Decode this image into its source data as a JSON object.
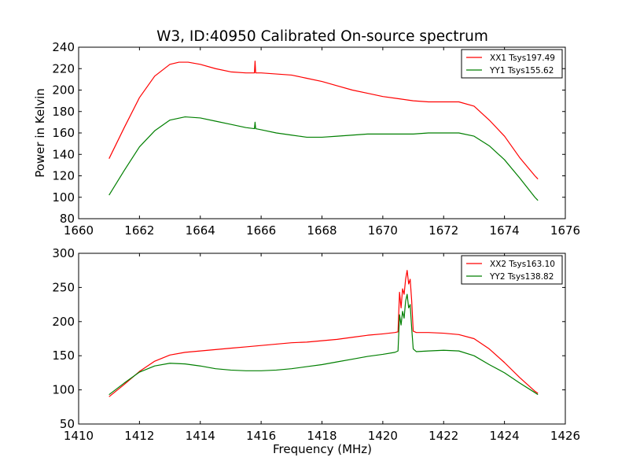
{
  "chart_data": [
    {
      "type": "line",
      "title": "W3, ID:40950 Calibrated On-source spectrum",
      "xlabel": "",
      "ylabel": "Power in Kelvin",
      "xlim": [
        1660,
        1676
      ],
      "ylim": [
        80,
        240
      ],
      "xticks": [
        "1660",
        "1662",
        "1664",
        "1666",
        "1668",
        "1670",
        "1672",
        "1674",
        "1676"
      ],
      "yticks": [
        "80",
        "100",
        "120",
        "140",
        "160",
        "180",
        "200",
        "220",
        "240"
      ],
      "legend": "top-right",
      "series": [
        {
          "name": "XX1 Tsys197.49",
          "color": "#ff0000",
          "x": [
            1661.0,
            1661.5,
            1662.0,
            1662.5,
            1663.0,
            1663.3,
            1663.6,
            1664.0,
            1664.5,
            1665.0,
            1665.5,
            1665.78,
            1665.8,
            1665.82,
            1666.0,
            1666.5,
            1667.0,
            1667.5,
            1668.0,
            1668.5,
            1669.0,
            1669.5,
            1670.0,
            1670.5,
            1671.0,
            1671.5,
            1672.0,
            1672.5,
            1673.0,
            1673.5,
            1674.0,
            1674.5,
            1675.0,
            1675.1
          ],
          "y": [
            136,
            165,
            193,
            213,
            224,
            226,
            226,
            224,
            220,
            217,
            216,
            216,
            227,
            216,
            216,
            215,
            214,
            211,
            208,
            204,
            200,
            197,
            194,
            192,
            190,
            189,
            189,
            189,
            185,
            172,
            157,
            137,
            120,
            117
          ]
        },
        {
          "name": "YY1 Tsys155.62",
          "color": "#007f00",
          "x": [
            1661.0,
            1661.5,
            1662.0,
            1662.5,
            1663.0,
            1663.5,
            1664.0,
            1664.5,
            1665.0,
            1665.5,
            1665.78,
            1665.8,
            1665.82,
            1666.0,
            1666.5,
            1667.0,
            1667.5,
            1668.0,
            1668.5,
            1669.0,
            1669.5,
            1670.0,
            1670.5,
            1671.0,
            1671.5,
            1672.0,
            1672.5,
            1673.0,
            1673.5,
            1674.0,
            1674.5,
            1675.0,
            1675.1
          ],
          "y": [
            102,
            125,
            147,
            162,
            172,
            175,
            174,
            171,
            168,
            165,
            164,
            170,
            164,
            163,
            160,
            158,
            156,
            156,
            157,
            158,
            159,
            159,
            159,
            159,
            160,
            160,
            160,
            157,
            148,
            135,
            118,
            100,
            97
          ]
        }
      ]
    },
    {
      "type": "line",
      "title": "",
      "xlabel": "Frequency (MHz)",
      "ylabel": "",
      "xlim": [
        1410,
        1426
      ],
      "ylim": [
        50,
        300
      ],
      "xticks": [
        "1410",
        "1412",
        "1414",
        "1416",
        "1418",
        "1420",
        "1422",
        "1424",
        "1426"
      ],
      "yticks": [
        "50",
        "100",
        "150",
        "200",
        "250",
        "300"
      ],
      "legend": "top-right",
      "series": [
        {
          "name": "XX2 Tsys163.10",
          "color": "#ff0000",
          "x": [
            1411.0,
            1411.5,
            1412.0,
            1412.5,
            1413.0,
            1413.5,
            1414.0,
            1414.5,
            1415.0,
            1415.5,
            1416.0,
            1416.5,
            1417.0,
            1417.5,
            1418.0,
            1418.5,
            1419.0,
            1419.5,
            1420.0,
            1420.4,
            1420.5,
            1420.55,
            1420.6,
            1420.65,
            1420.7,
            1420.75,
            1420.8,
            1420.85,
            1420.9,
            1420.95,
            1421.0,
            1421.1,
            1421.5,
            1422.0,
            1422.5,
            1423.0,
            1423.5,
            1424.0,
            1424.5,
            1425.0,
            1425.1
          ],
          "y": [
            90,
            108,
            127,
            142,
            151,
            155,
            157,
            159,
            161,
            163,
            165,
            167,
            169,
            170,
            172,
            174,
            177,
            180,
            182,
            184,
            185,
            243,
            220,
            248,
            240,
            262,
            275,
            255,
            262,
            230,
            186,
            184,
            184,
            183,
            181,
            175,
            160,
            140,
            118,
            98,
            95
          ]
        },
        {
          "name": "YY2 Tsys138.82",
          "color": "#007f00",
          "x": [
            1411.0,
            1411.5,
            1412.0,
            1412.5,
            1413.0,
            1413.5,
            1414.0,
            1414.5,
            1415.0,
            1415.5,
            1416.0,
            1416.5,
            1417.0,
            1417.5,
            1418.0,
            1418.5,
            1419.0,
            1419.5,
            1420.0,
            1420.4,
            1420.5,
            1420.55,
            1420.6,
            1420.65,
            1420.7,
            1420.75,
            1420.8,
            1420.85,
            1420.9,
            1420.95,
            1421.0,
            1421.1,
            1421.5,
            1422.0,
            1422.5,
            1423.0,
            1423.5,
            1424.0,
            1424.5,
            1425.0,
            1425.1
          ],
          "y": [
            93,
            110,
            126,
            135,
            139,
            138,
            135,
            131,
            129,
            128,
            128,
            129,
            131,
            134,
            137,
            141,
            145,
            149,
            152,
            155,
            157,
            210,
            195,
            215,
            205,
            230,
            240,
            220,
            225,
            190,
            160,
            156,
            157,
            158,
            157,
            150,
            137,
            125,
            110,
            96,
            93
          ]
        }
      ]
    }
  ]
}
